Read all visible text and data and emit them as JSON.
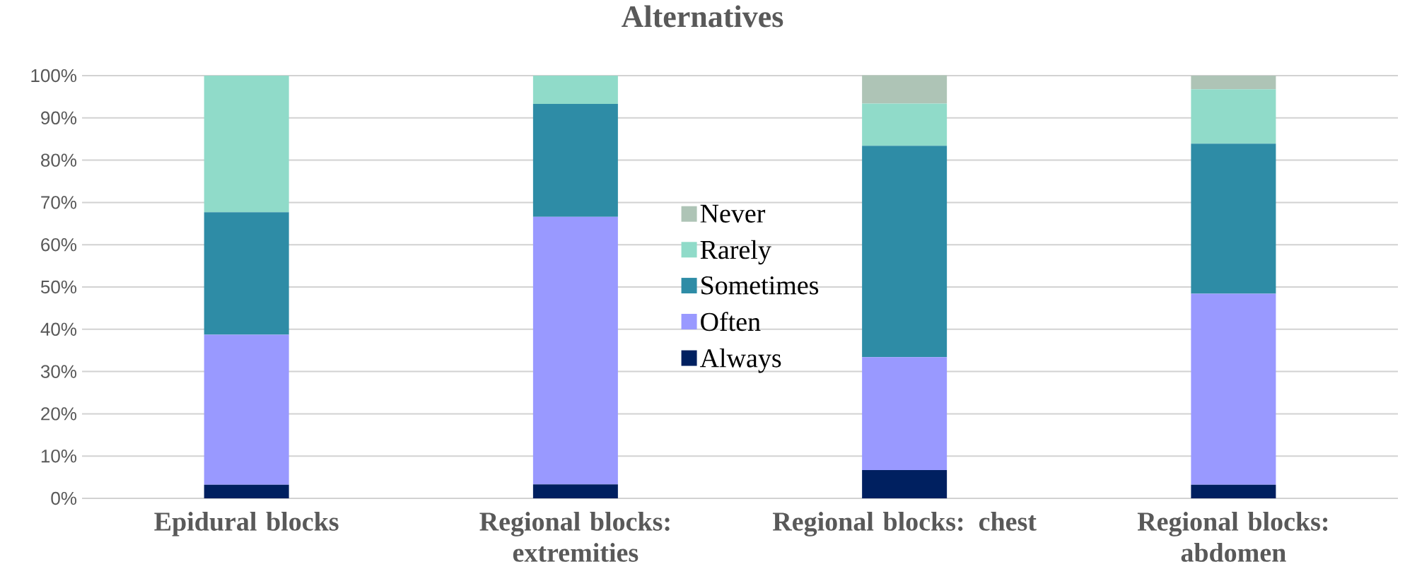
{
  "chart_data": {
    "type": "bar",
    "stacked": true,
    "title": "Alternatives",
    "categories": [
      "Epidural blocks",
      "Regional blocks: extremities",
      "Regional blocks: chest",
      "Regional blocks: abdomen"
    ],
    "series": [
      {
        "name": "Always",
        "color": "#002060",
        "values": [
          3.2,
          3.3,
          6.7,
          3.2
        ]
      },
      {
        "name": "Often",
        "color": "#9999ff",
        "values": [
          35.5,
          63.3,
          26.7,
          45.2
        ]
      },
      {
        "name": "Sometimes",
        "color": "#2e8ca6",
        "values": [
          29.0,
          26.7,
          50.0,
          35.5
        ]
      },
      {
        "name": "Rarely",
        "color": "#90dbc9",
        "values": [
          32.3,
          6.7,
          10.0,
          12.9
        ]
      },
      {
        "name": "Never",
        "color": "#aec4b6",
        "values": [
          0,
          0,
          6.7,
          3.2
        ]
      }
    ],
    "ylim": [
      0,
      100
    ],
    "yticks": [
      {
        "value": 0,
        "label": "0%"
      },
      {
        "value": 10,
        "label": "10%"
      },
      {
        "value": 20,
        "label": "20%"
      },
      {
        "value": 30,
        "label": "30%"
      },
      {
        "value": 40,
        "label": "40%"
      },
      {
        "value": 50,
        "label": "50%"
      },
      {
        "value": 60,
        "label": "60%"
      },
      {
        "value": 70,
        "label": "70%"
      },
      {
        "value": 80,
        "label": "80%"
      },
      {
        "value": 90,
        "label": "90%"
      },
      {
        "value": 100,
        "label": "100%"
      }
    ],
    "grid": "y",
    "legend": "center"
  }
}
